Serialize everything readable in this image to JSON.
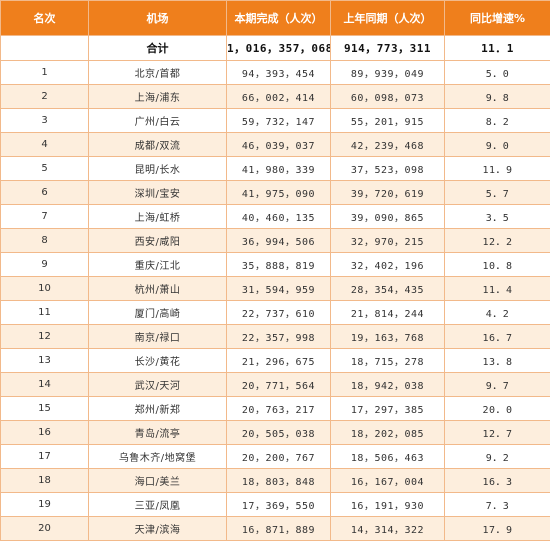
{
  "header": {
    "rank": "名次",
    "airport": "机场",
    "current": "本期完成（人次）",
    "last_year": "上年同期（人次）",
    "growth": "同比增速%"
  },
  "total": {
    "label": "合计",
    "current": "1，016，357，068",
    "last_year": "914，773，311",
    "growth": "11．1"
  },
  "rows": [
    {
      "rank": "1",
      "airport": "北京/首都",
      "current": "94，393，454",
      "last_year": "89，939，049",
      "growth": "5．0"
    },
    {
      "rank": "2",
      "airport": "上海/浦东",
      "current": "66，002，414",
      "last_year": "60，098，073",
      "growth": "9．8"
    },
    {
      "rank": "3",
      "airport": "广州/白云",
      "current": "59，732，147",
      "last_year": "55，201，915",
      "growth": "8．2"
    },
    {
      "rank": "4",
      "airport": "成都/双流",
      "current": "46，039，037",
      "last_year": "42，239，468",
      "growth": "9．0"
    },
    {
      "rank": "5",
      "airport": "昆明/长水",
      "current": "41，980，339",
      "last_year": "37，523，098",
      "growth": "11．9"
    },
    {
      "rank": "6",
      "airport": "深圳/宝安",
      "current": "41，975，090",
      "last_year": "39，720，619",
      "growth": "5．7"
    },
    {
      "rank": "7",
      "airport": "上海/虹桥",
      "current": "40，460，135",
      "last_year": "39，090，865",
      "growth": "3．5"
    },
    {
      "rank": "8",
      "airport": "西安/咸阳",
      "current": "36，994，506",
      "last_year": "32，970，215",
      "growth": "12．2"
    },
    {
      "rank": "9",
      "airport": "重庆/江北",
      "current": "35，888，819",
      "last_year": "32，402，196",
      "growth": "10．8"
    },
    {
      "rank": "10",
      "airport": "杭州/萧山",
      "current": "31，594，959",
      "last_year": "28，354，435",
      "growth": "11．4"
    },
    {
      "rank": "11",
      "airport": "厦门/高崎",
      "current": "22，737，610",
      "last_year": "21，814，244",
      "growth": "4．2"
    },
    {
      "rank": "12",
      "airport": "南京/禄口",
      "current": "22，357，998",
      "last_year": "19，163，768",
      "growth": "16．7"
    },
    {
      "rank": "13",
      "airport": "长沙/黄花",
      "current": "21，296，675",
      "last_year": "18，715，278",
      "growth": "13．8"
    },
    {
      "rank": "14",
      "airport": "武汉/天河",
      "current": "20，771，564",
      "last_year": "18，942，038",
      "growth": "9．7"
    },
    {
      "rank": "15",
      "airport": "郑州/新郑",
      "current": "20，763，217",
      "last_year": "17，297，385",
      "growth": "20．0"
    },
    {
      "rank": "16",
      "airport": "青岛/流亭",
      "current": "20，505，038",
      "last_year": "18，202，085",
      "growth": "12．7"
    },
    {
      "rank": "17",
      "airport": "乌鲁木齐/地窝堡",
      "current": "20，200，767",
      "last_year": "18，506，463",
      "growth": "9．2"
    },
    {
      "rank": "18",
      "airport": "海口/美兰",
      "current": "18，803，848",
      "last_year": "16，167，004",
      "growth": "16．3"
    },
    {
      "rank": "19",
      "airport": "三亚/凤凰",
      "current": "17，369，550",
      "last_year": "16，191，930",
      "growth": "7．3"
    },
    {
      "rank": "20",
      "airport": "天津/滨海",
      "current": "16，871，889",
      "last_year": "14，314，322",
      "growth": "17．9"
    }
  ],
  "colors": {
    "header_bg": "#ef7f1c",
    "header_text": "#ffffff",
    "alt_row_bg": "#fdeedd",
    "border": "#f2b98a"
  }
}
